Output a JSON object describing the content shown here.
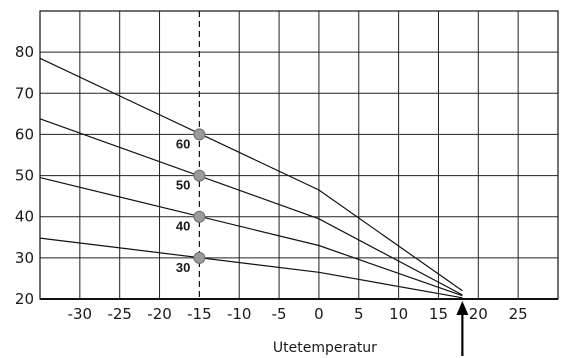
{
  "chart_data": {
    "type": "line",
    "xlabel": "Utetemperatur",
    "ylabel": "",
    "xlim": [
      -35,
      30
    ],
    "ylim": [
      20,
      90
    ],
    "x_ticks": [
      -30,
      -25,
      -20,
      -15,
      -10,
      -5,
      0,
      5,
      10,
      15,
      20,
      25
    ],
    "y_ticks": [
      20,
      30,
      40,
      50,
      60,
      70,
      80
    ],
    "grid": true,
    "reference_line_x": -15,
    "arrow_x": 18,
    "series": [
      {
        "name": "60",
        "points": [
          [
            -35,
            78.5
          ],
          [
            0,
            46.5
          ],
          [
            18,
            22
          ]
        ],
        "marker_x": -15,
        "marker_y": 60
      },
      {
        "name": "50",
        "points": [
          [
            -35,
            63.8
          ],
          [
            0,
            39.5
          ],
          [
            18,
            21
          ]
        ],
        "marker_x": -15,
        "marker_y": 50
      },
      {
        "name": "40",
        "points": [
          [
            -35,
            49.5
          ],
          [
            0,
            33.0
          ],
          [
            18,
            20.8
          ]
        ],
        "marker_x": -15,
        "marker_y": 40
      },
      {
        "name": "30",
        "points": [
          [
            -35,
            34.8
          ],
          [
            0,
            26.5
          ],
          [
            18,
            20.3
          ]
        ],
        "marker_x": -15,
        "marker_y": 30
      }
    ]
  }
}
